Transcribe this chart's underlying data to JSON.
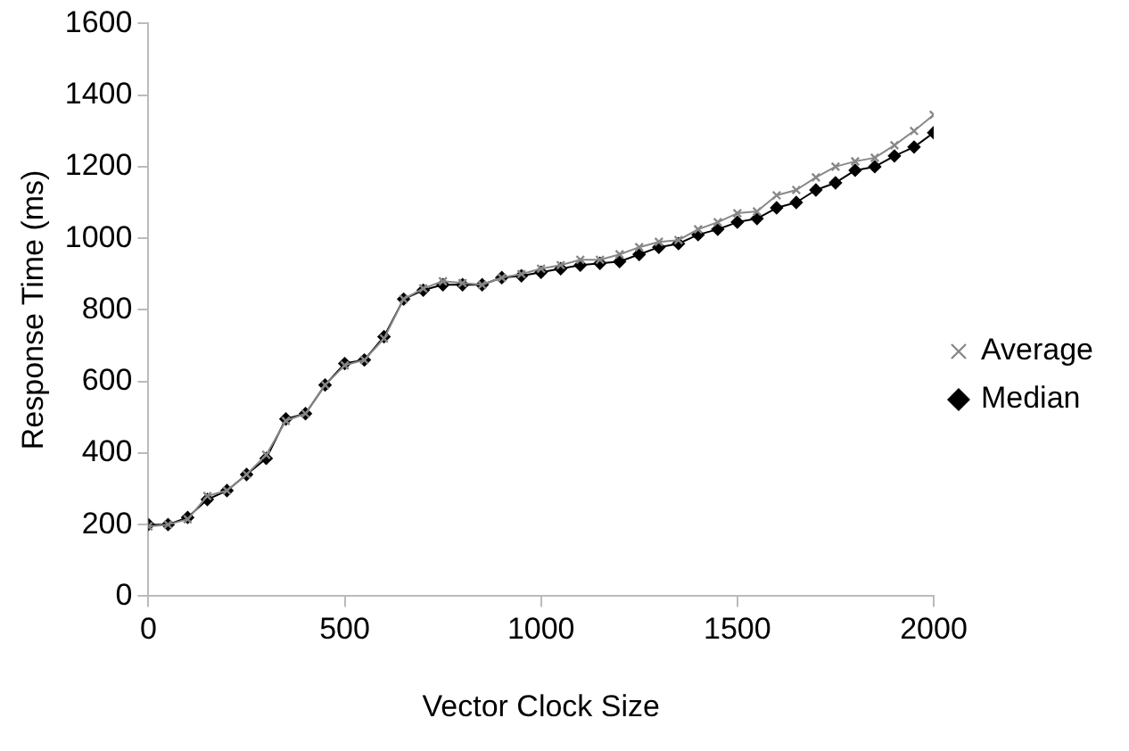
{
  "chart_data": {
    "type": "line",
    "xlabel": "Vector Clock Size",
    "ylabel": "Response Time (ms)",
    "x": [
      0,
      50,
      100,
      150,
      200,
      250,
      300,
      350,
      400,
      450,
      500,
      550,
      600,
      650,
      700,
      750,
      800,
      850,
      900,
      950,
      1000,
      1050,
      1100,
      1150,
      1200,
      1250,
      1300,
      1350,
      1400,
      1450,
      1500,
      1550,
      1600,
      1650,
      1700,
      1750,
      1800,
      1850,
      1900,
      1950,
      2000
    ],
    "series": [
      {
        "name": "Median",
        "color": "#000000",
        "marker": "diamond",
        "values": [
          200,
          200,
          220,
          270,
          295,
          340,
          385,
          495,
          510,
          590,
          650,
          660,
          725,
          830,
          855,
          870,
          870,
          870,
          890,
          895,
          905,
          915,
          925,
          930,
          935,
          955,
          975,
          985,
          1010,
          1025,
          1045,
          1055,
          1085,
          1100,
          1135,
          1155,
          1190,
          1200,
          1230,
          1255,
          1295
        ]
      },
      {
        "name": "Average",
        "color": "#888888",
        "marker": "cross",
        "values": [
          195,
          200,
          215,
          280,
          295,
          340,
          395,
          490,
          510,
          590,
          645,
          660,
          720,
          830,
          860,
          880,
          875,
          870,
          890,
          900,
          915,
          925,
          940,
          940,
          955,
          975,
          990,
          995,
          1025,
          1045,
          1070,
          1075,
          1120,
          1135,
          1170,
          1200,
          1215,
          1225,
          1260,
          1300,
          1345
        ]
      }
    ],
    "xlim": [
      0,
      2000
    ],
    "xticks": [
      0,
      500,
      1000,
      1500,
      2000
    ],
    "ylim": [
      0,
      1600
    ],
    "yticks": [
      0,
      200,
      400,
      600,
      800,
      1000,
      1200,
      1400,
      1600
    ],
    "grid": false,
    "legend": "right"
  }
}
